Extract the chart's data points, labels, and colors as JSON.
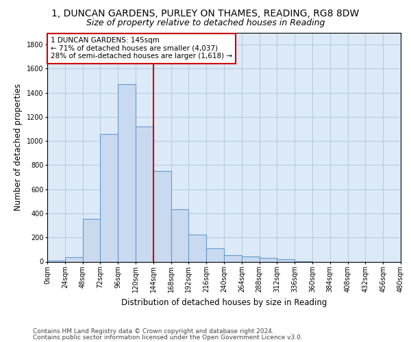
{
  "title_line1": "1, DUNCAN GARDENS, PURLEY ON THAMES, READING, RG8 8DW",
  "title_line2": "Size of property relative to detached houses in Reading",
  "xlabel": "Distribution of detached houses by size in Reading",
  "ylabel": "Number of detached properties",
  "bin_labels": [
    "0sqm",
    "24sqm",
    "48sqm",
    "72sqm",
    "96sqm",
    "120sqm",
    "144sqm",
    "168sqm",
    "192sqm",
    "216sqm",
    "240sqm",
    "264sqm",
    "288sqm",
    "312sqm",
    "336sqm",
    "360sqm",
    "384sqm",
    "408sqm",
    "432sqm",
    "456sqm",
    "480sqm"
  ],
  "bar_values": [
    10,
    35,
    355,
    1060,
    1470,
    1120,
    750,
    435,
    225,
    110,
    55,
    45,
    30,
    20,
    5,
    0,
    0,
    0,
    0,
    0
  ],
  "bar_color": "#c8d9f0",
  "bar_edge_color": "#6699cc",
  "vline_color": "#cc0000",
  "annotation_text": "1 DUNCAN GARDENS: 145sqm\n← 71% of detached houses are smaller (4,037)\n28% of semi-detached houses are larger (1,618) →",
  "annotation_box_color": "#ffffff",
  "annotation_box_edge": "#cc0000",
  "ylim": [
    0,
    1900
  ],
  "yticks": [
    0,
    200,
    400,
    600,
    800,
    1000,
    1200,
    1400,
    1600,
    1800
  ],
  "background_color": "#ffffff",
  "plot_bg_color": "#dce9f7",
  "grid_color": "#b0c4d8",
  "footer_line1": "Contains HM Land Registry data © Crown copyright and database right 2024.",
  "footer_line2": "Contains public sector information licensed under the Open Government Licence v3.0.",
  "title_fontsize": 10,
  "subtitle_fontsize": 9,
  "axis_label_fontsize": 8.5,
  "tick_fontsize": 7,
  "annotation_fontsize": 7.5,
  "footer_fontsize": 6.5
}
